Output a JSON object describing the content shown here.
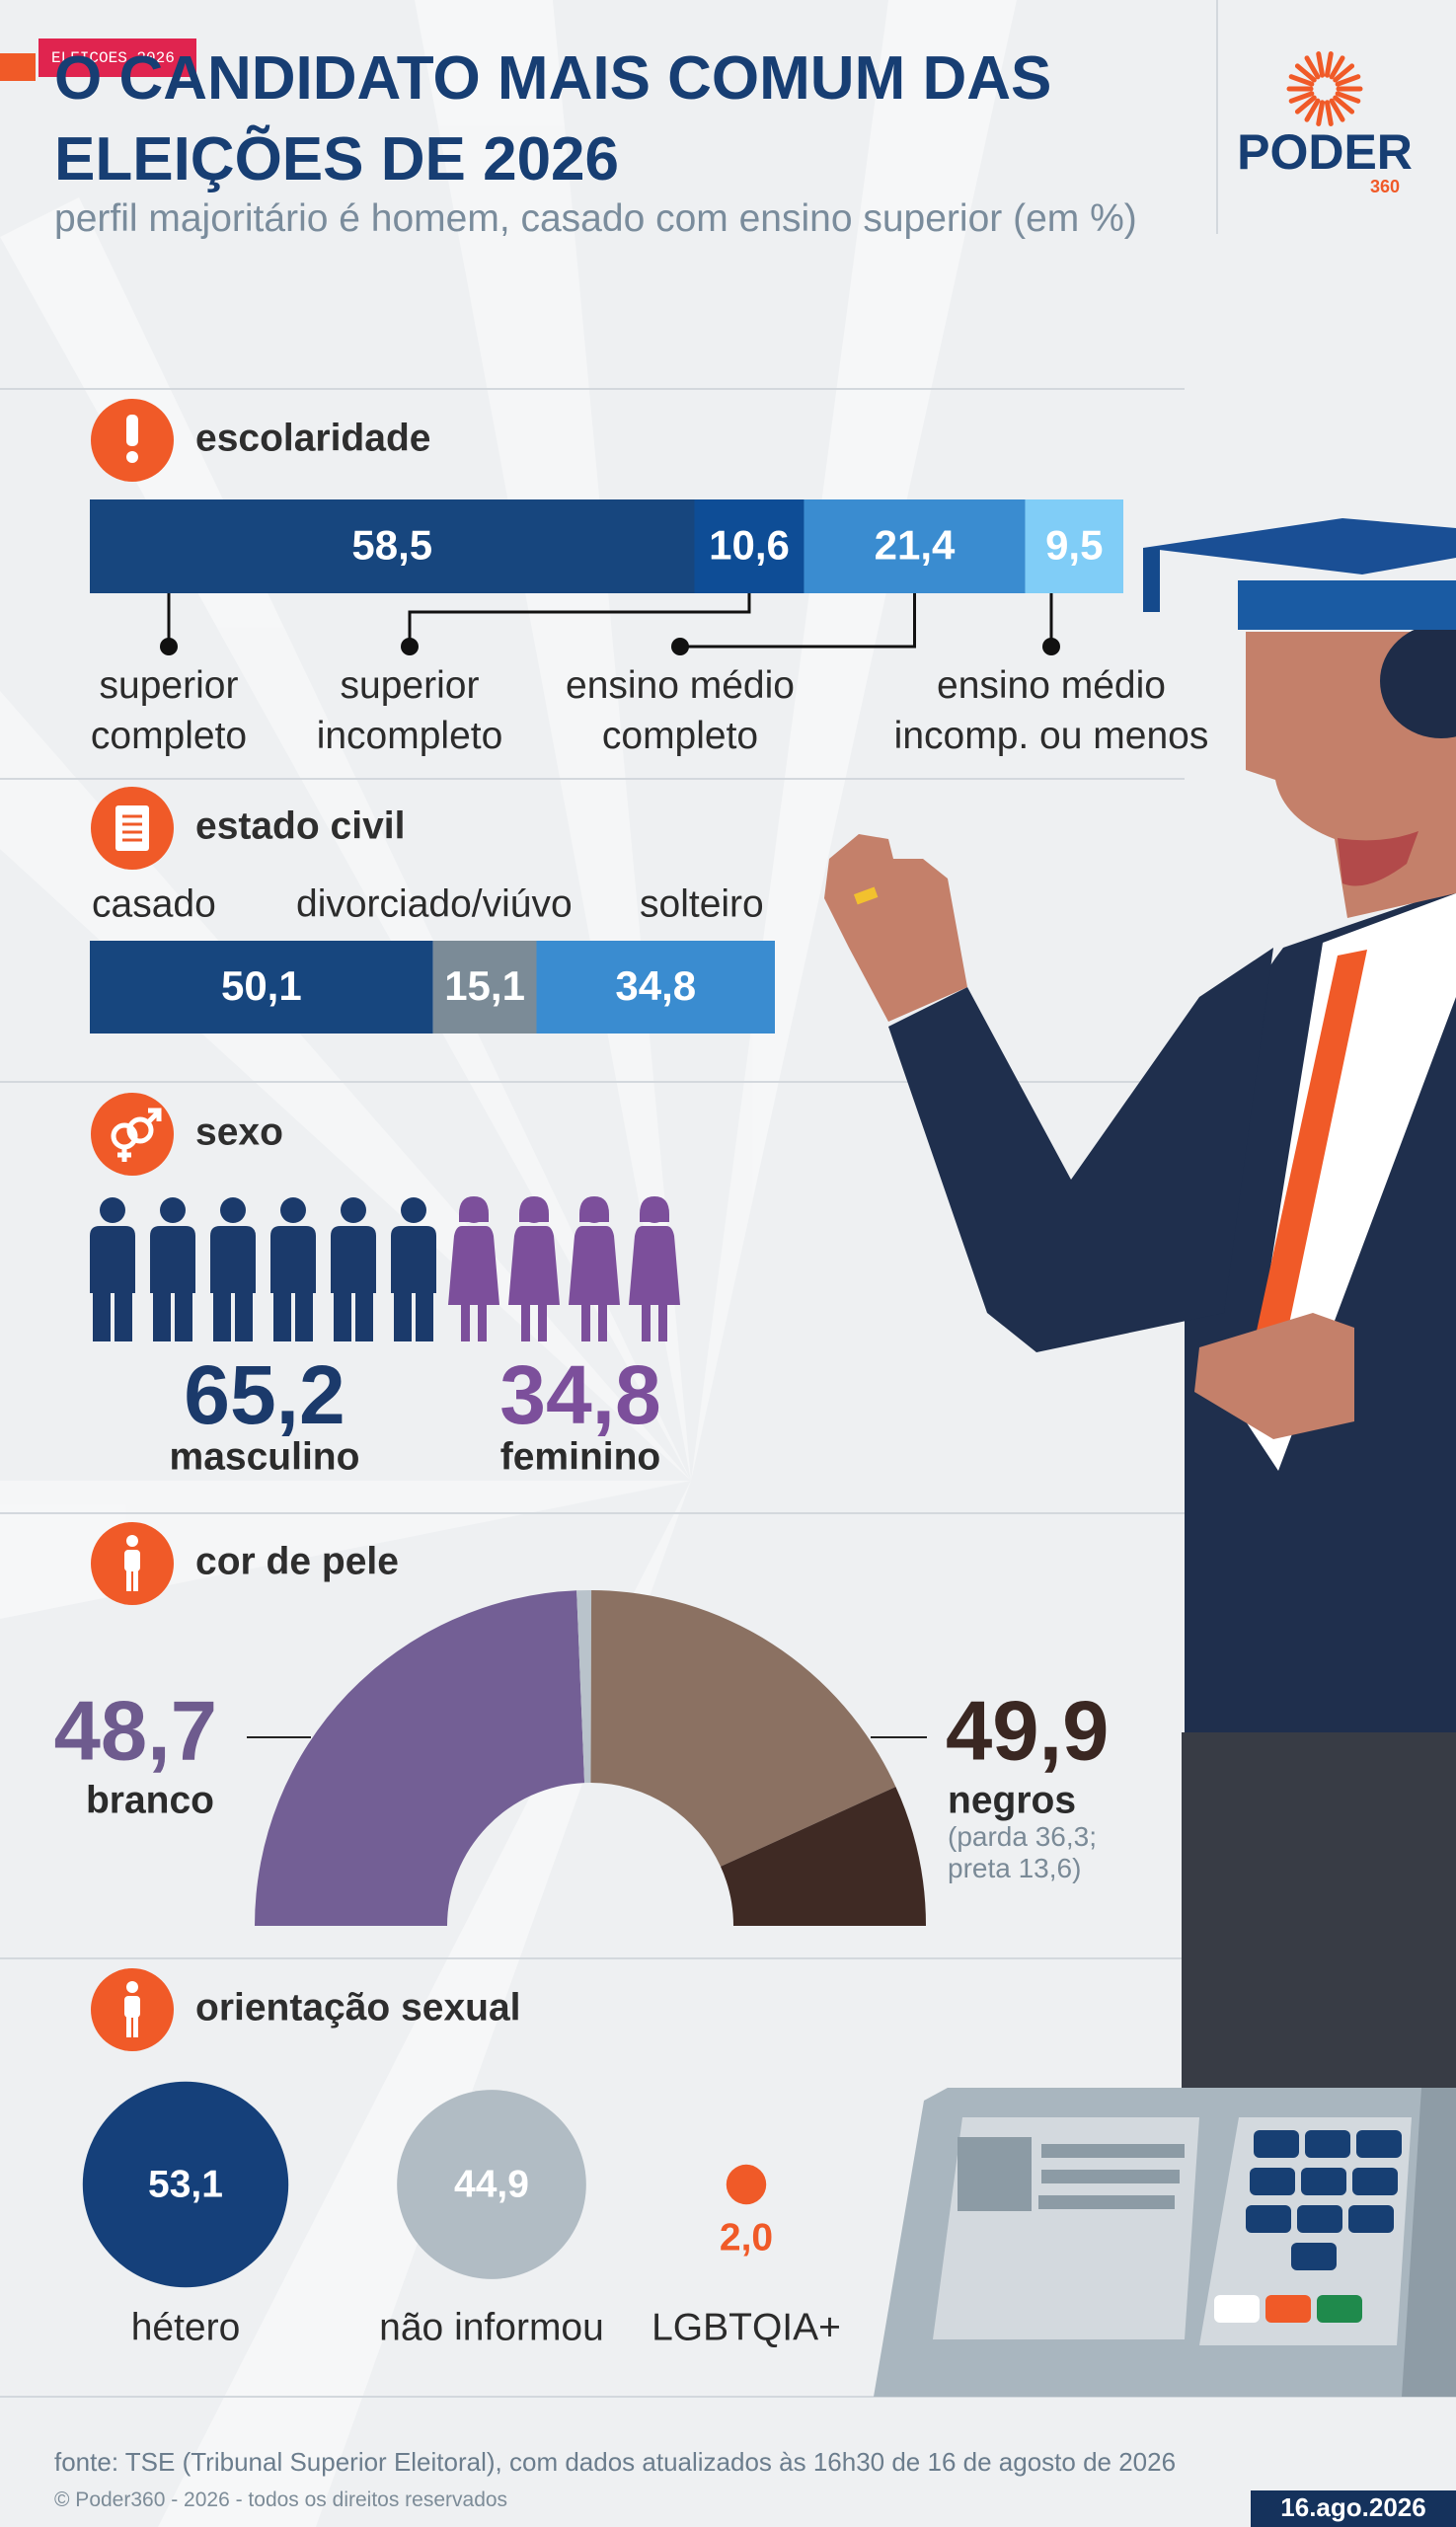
{
  "header": {
    "tag": "ELEICOES 2026",
    "title": "O CANDIDATO MAIS COMUM DAS ELEIÇÕES DE 2026",
    "subtitle": "perfil majoritário é homem, casado com ensino superior (em %)"
  },
  "logo": {
    "name": "PODER",
    "number": "360"
  },
  "chart_data": [
    {
      "type": "stacked-bar",
      "title": "escolaridade",
      "categories": [
        "superior completo",
        "superior incompleto",
        "ensino médio completo",
        "ensino médio incomp. ou menos"
      ],
      "values": [
        58.5,
        10.6,
        21.4,
        9.5
      ],
      "value_labels": [
        "58,5",
        "10,6",
        "21,4",
        "9,5"
      ],
      "colors": [
        "#17467e",
        "#0e4d96",
        "#3a8cd0",
        "#80cdf7"
      ],
      "xlim": [
        0,
        100
      ]
    },
    {
      "type": "stacked-bar",
      "title": "estado civil",
      "categories": [
        "casado",
        "divorciado/viúvo",
        "solteiro"
      ],
      "values": [
        50.1,
        15.1,
        34.8
      ],
      "value_labels": [
        "50,1",
        "15,1",
        "34,8"
      ],
      "colors": [
        "#17467e",
        "#7b8b97",
        "#3a8cd0"
      ],
      "xlim": [
        0,
        100
      ]
    },
    {
      "type": "pictogram",
      "title": "sexo",
      "categories": [
        "masculino",
        "feminino"
      ],
      "values": [
        65.2,
        34.8
      ],
      "value_labels": [
        "65,2",
        "34,8"
      ],
      "colors": [
        "#1b3a6b",
        "#7c4f9b"
      ]
    },
    {
      "type": "half-donut",
      "title": "cor de pele",
      "values": [
        48.7,
        1.4,
        36.3,
        13.6
      ],
      "colors": [
        "#735f95",
        "#b9c3cb",
        "#8b7162",
        "#3f2a24"
      ],
      "groups": [
        {
          "name": "branco",
          "value": 48.7,
          "value_label": "48,7",
          "color": "#6e5b8e"
        },
        {
          "name": "negros",
          "value": 49.9,
          "value_label": "49,9",
          "color": "#3a2722",
          "note": "(parda 36,3; preta 13,6)"
        }
      ]
    },
    {
      "type": "bubble",
      "title": "orientação sexual",
      "categories": [
        "hétero",
        "não informou",
        "LGBTQIA+"
      ],
      "values": [
        53.1,
        44.9,
        2.0
      ],
      "value_labels": [
        "53,1",
        "44,9",
        "2,0"
      ],
      "colors": [
        "#15407a",
        "#b1bcc4",
        "#f05a28"
      ]
    }
  ],
  "footer": {
    "source": "fonte: TSE (Tribunal Superior Eleitoral), com dados atualizados às 16h30 de 16 de agosto de 2026",
    "copyright": "© Poder360 - 2026 - todos os direitos reservados",
    "date": "16.ago.2026"
  }
}
